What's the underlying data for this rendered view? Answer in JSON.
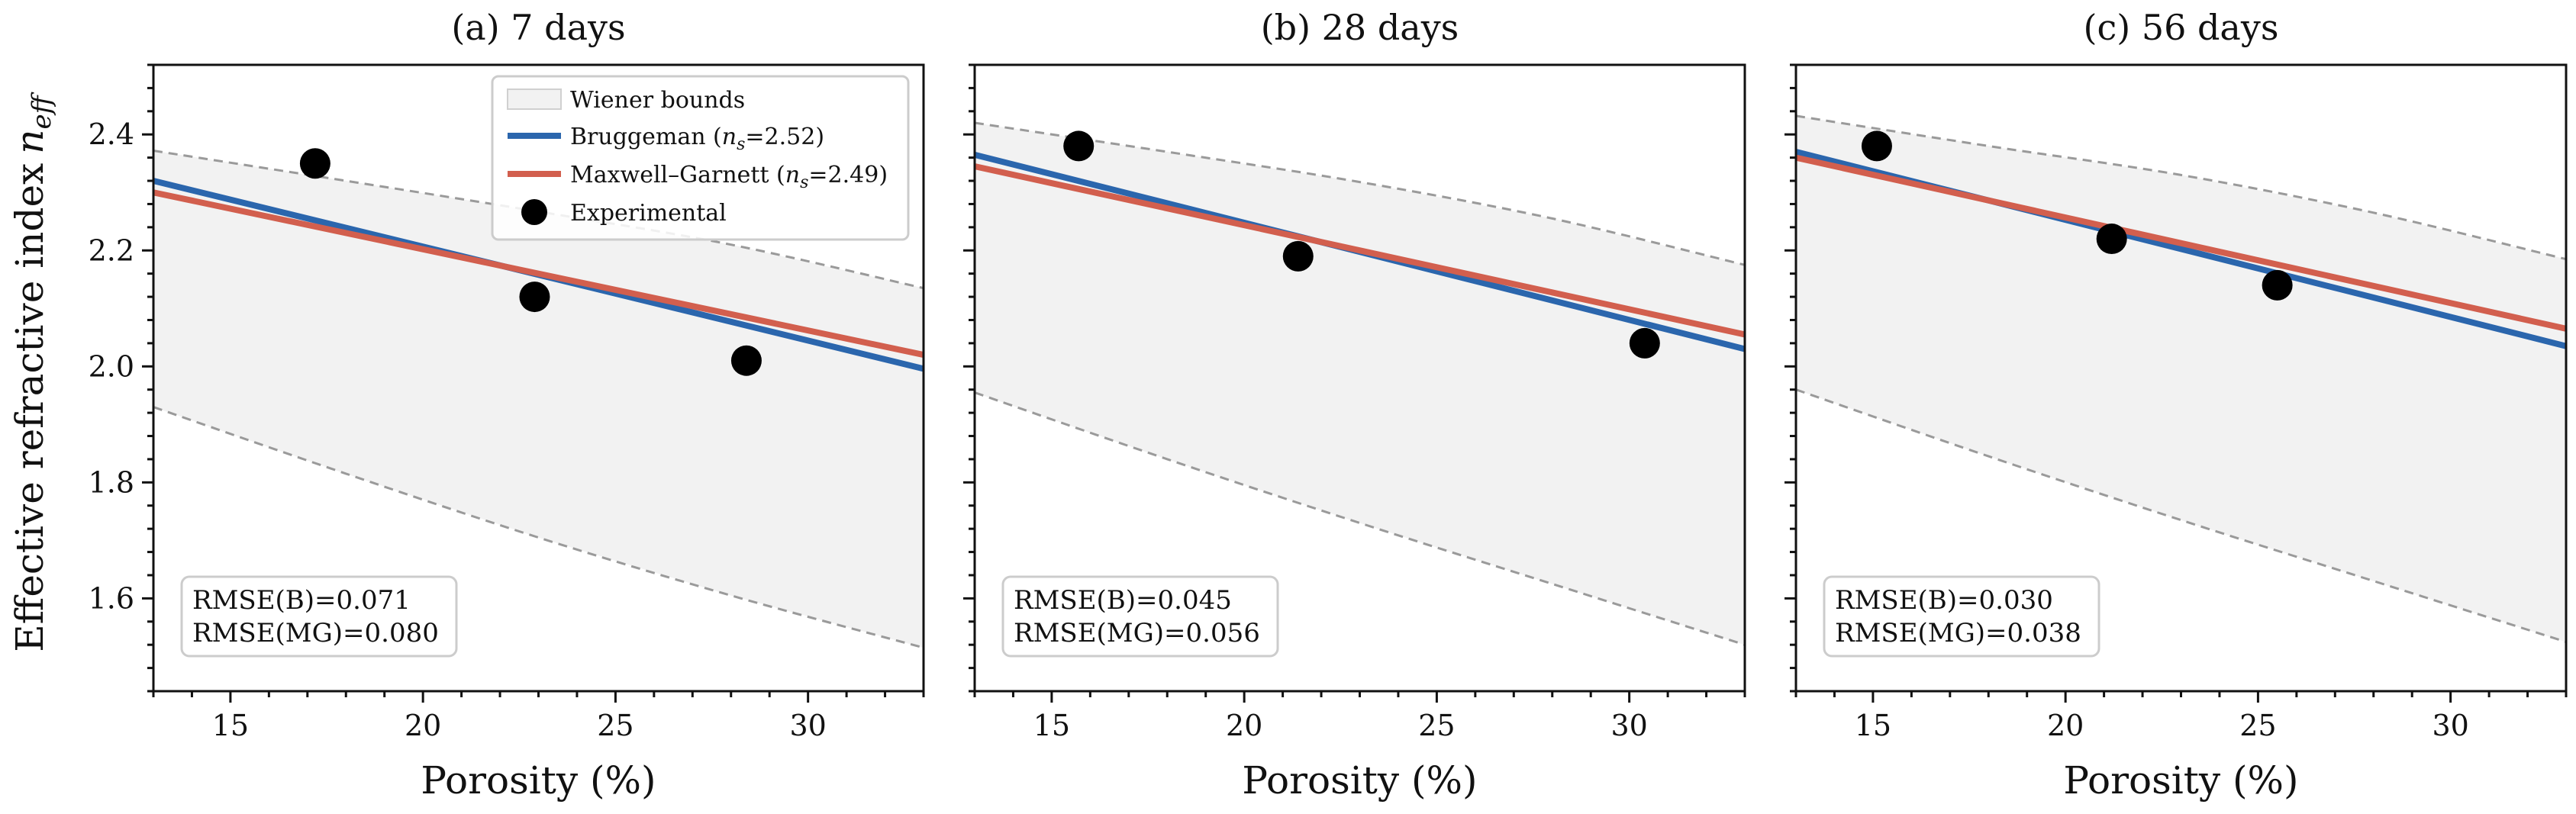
{
  "figure": {
    "ylabel": "Effective refractive index",
    "ylabel_symbol": "n",
    "ylabel_subscript": "eff",
    "xlabel": "Porosity (%)"
  },
  "legend": {
    "placement": "upper-right of first panel",
    "entries": [
      {
        "key": "wiener",
        "text": "Wiener bounds",
        "color": "#f2f2f2"
      },
      {
        "key": "bruggeman",
        "prefix": "Bruggeman (",
        "symbol": "n",
        "subscript": "s",
        "suffix": "=2.52)",
        "color": "#2b66ad"
      },
      {
        "key": "maxwell",
        "prefix": "Maxwell–Garnett (",
        "symbol": "n",
        "subscript": "s",
        "suffix": "=2.49)",
        "color": "#d25f4e"
      },
      {
        "key": "experimental",
        "text": "Experimental",
        "color": "#000000"
      }
    ]
  },
  "chart_data": [
    {
      "type": "line",
      "title": "(a) 7 days",
      "xlabel": "Porosity (%)",
      "ylabel": "Effective refractive index n_eff",
      "xlim": [
        13,
        33
      ],
      "ylim": [
        1.44,
        2.52
      ],
      "xticks": [
        15,
        20,
        25,
        30
      ],
      "yticks": [
        1.6,
        1.8,
        2.0,
        2.2,
        2.4
      ],
      "grid": false,
      "series": [
        {
          "name": "Bruggeman",
          "x": [
            13,
            33
          ],
          "y": [
            2.32,
            1.996
          ]
        },
        {
          "name": "Maxwell–Garnett",
          "x": [
            13,
            33
          ],
          "y": [
            2.3,
            2.02
          ]
        },
        {
          "name": "Experimental",
          "x": [
            17.2,
            22.9,
            28.4
          ],
          "y": [
            2.35,
            2.12,
            2.01
          ]
        }
      ],
      "bounds": {
        "name": "Wiener bounds",
        "x": [
          13,
          18,
          23,
          28,
          33
        ],
        "upper": [
          2.372,
          2.32,
          2.267,
          2.21,
          2.135
        ],
        "lower": [
          1.93,
          1.815,
          1.705,
          1.605,
          1.515
        ]
      },
      "annotations": [
        "RMSE(B)=0.071",
        "RMSE(MG)=0.080"
      ]
    },
    {
      "type": "line",
      "title": "(b) 28 days",
      "xlabel": "Porosity (%)",
      "xlim": [
        13,
        33
      ],
      "ylim": [
        1.44,
        2.52
      ],
      "xticks": [
        15,
        20,
        25,
        30
      ],
      "yticks": [
        1.6,
        1.8,
        2.0,
        2.2,
        2.4
      ],
      "grid": false,
      "series": [
        {
          "name": "Bruggeman",
          "x": [
            13,
            33
          ],
          "y": [
            2.365,
            2.03
          ]
        },
        {
          "name": "Maxwell–Garnett",
          "x": [
            13,
            33
          ],
          "y": [
            2.345,
            2.055
          ]
        },
        {
          "name": "Experimental",
          "x": [
            15.7,
            21.4,
            30.4
          ],
          "y": [
            2.38,
            2.19,
            2.04
          ]
        }
      ],
      "bounds": {
        "name": "Wiener bounds",
        "x": [
          13,
          18,
          23,
          28,
          33
        ],
        "upper": [
          2.42,
          2.37,
          2.318,
          2.255,
          2.175
        ],
        "lower": [
          1.955,
          1.84,
          1.73,
          1.625,
          1.52
        ]
      },
      "annotations": [
        "RMSE(B)=0.045",
        "RMSE(MG)=0.056"
      ]
    },
    {
      "type": "line",
      "title": "(c) 56 days",
      "xlabel": "Porosity (%)",
      "xlim": [
        13,
        33
      ],
      "ylim": [
        1.44,
        2.52
      ],
      "xticks": [
        15,
        20,
        25,
        30
      ],
      "yticks": [
        1.6,
        1.8,
        2.0,
        2.2,
        2.4
      ],
      "grid": false,
      "series": [
        {
          "name": "Bruggeman",
          "x": [
            13,
            33
          ],
          "y": [
            2.37,
            2.035
          ]
        },
        {
          "name": "Maxwell–Garnett",
          "x": [
            13,
            33
          ],
          "y": [
            2.36,
            2.065
          ]
        },
        {
          "name": "Experimental",
          "x": [
            15.1,
            21.2,
            25.5
          ],
          "y": [
            2.38,
            2.22,
            2.14
          ]
        }
      ],
      "bounds": {
        "name": "Wiener bounds",
        "x": [
          13,
          18,
          23,
          28,
          33
        ],
        "upper": [
          2.432,
          2.38,
          2.33,
          2.265,
          2.185
        ],
        "lower": [
          1.96,
          1.845,
          1.735,
          1.63,
          1.525
        ]
      },
      "annotations": [
        "RMSE(B)=0.030",
        "RMSE(MG)=0.038"
      ]
    }
  ]
}
